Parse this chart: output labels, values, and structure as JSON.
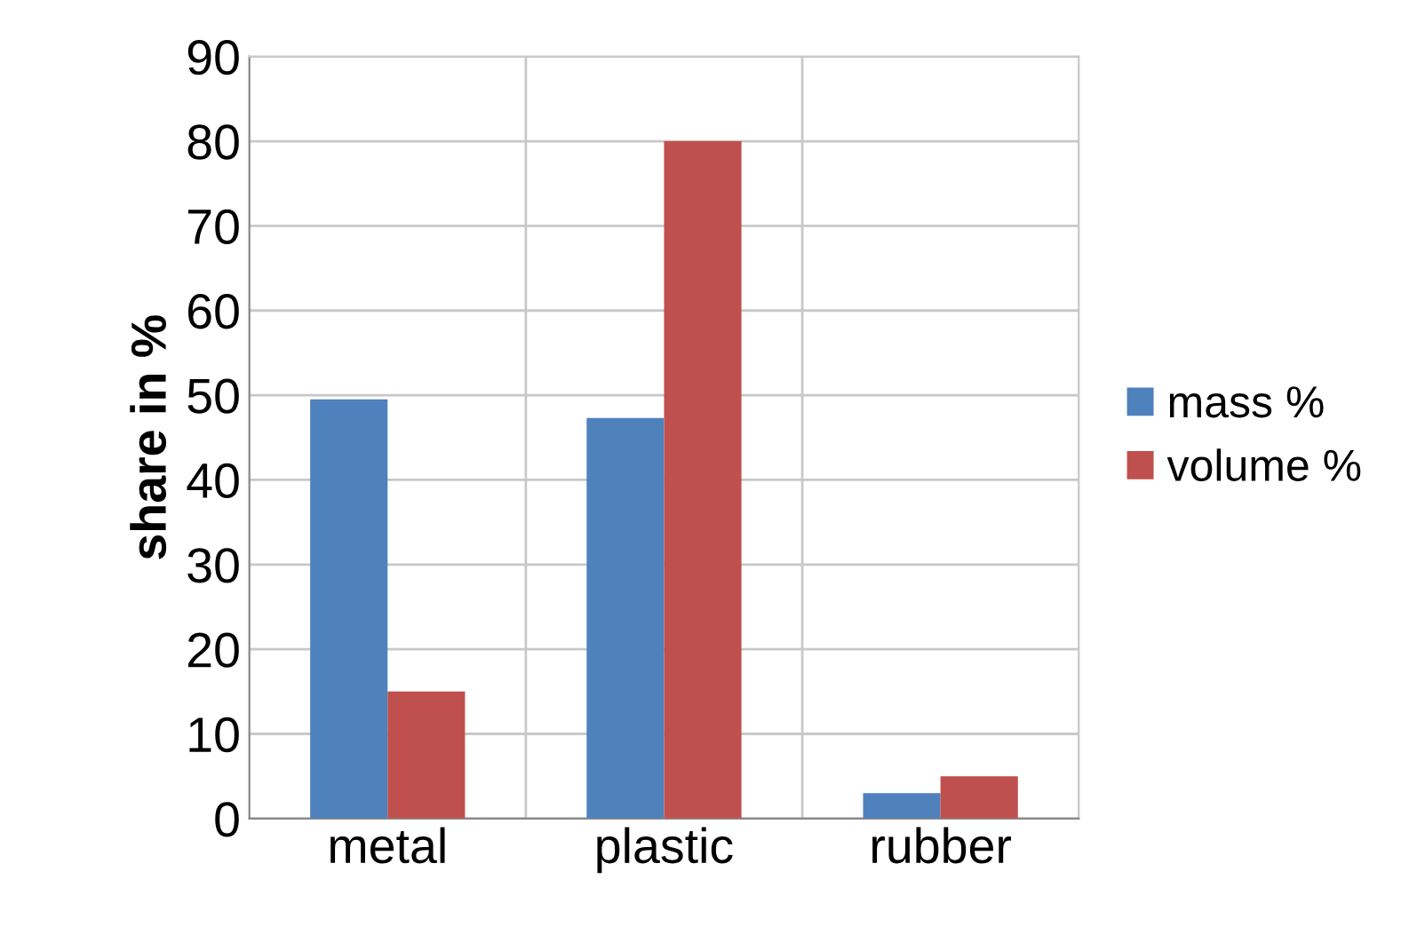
{
  "chart_data": {
    "type": "bar",
    "ylabel": "share in %",
    "categories": [
      "metal",
      "plastic",
      "rubber"
    ],
    "series": [
      {
        "name": "mass %",
        "color": "#4f81bd",
        "values": [
          49.5,
          47.3,
          3
        ]
      },
      {
        "name": "volume %",
        "color": "#c0504d",
        "values": [
          15,
          80,
          5
        ]
      }
    ],
    "ylim": [
      0,
      90
    ],
    "yticks": [
      0,
      10,
      20,
      30,
      40,
      50,
      60,
      70,
      80,
      90
    ],
    "grid": true,
    "legend": "right"
  }
}
